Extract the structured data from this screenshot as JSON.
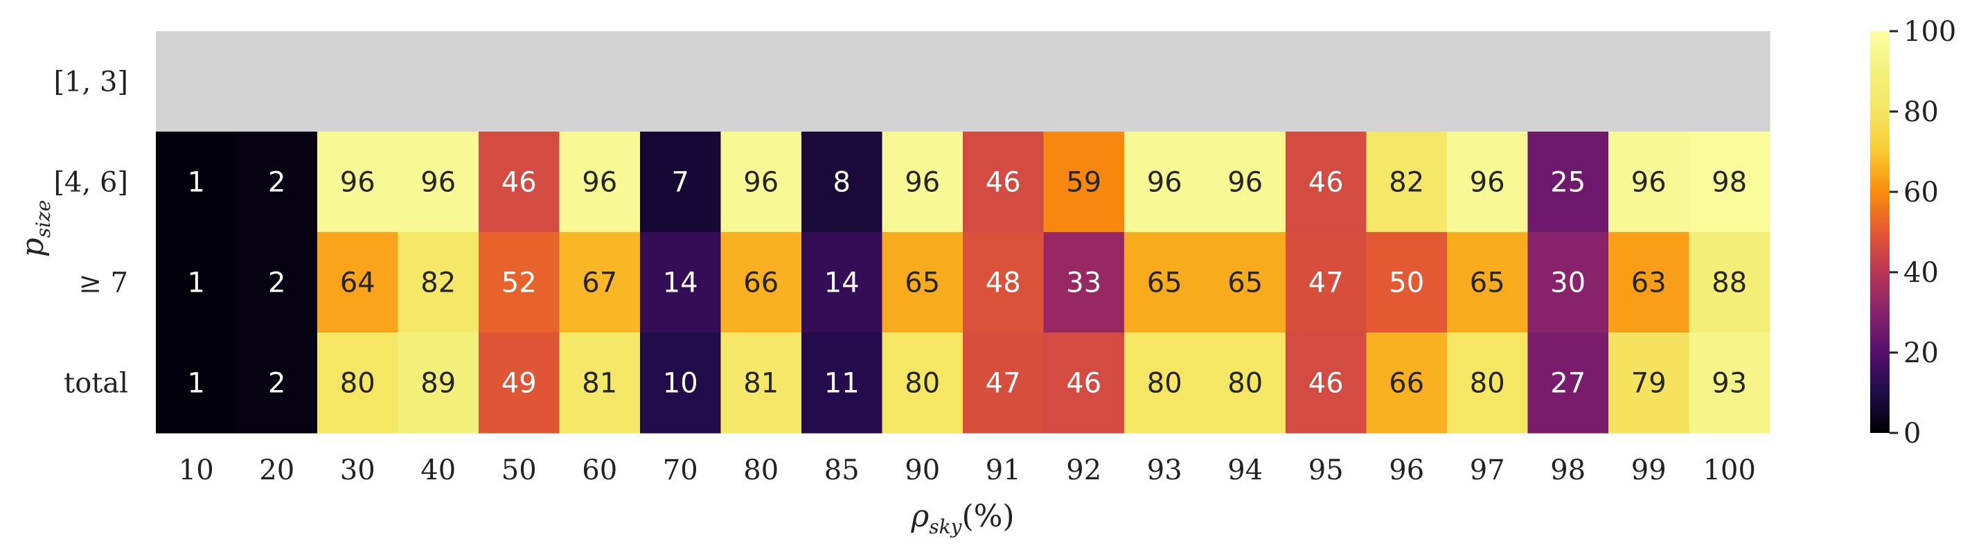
{
  "chart_data": {
    "type": "heatmap",
    "title": "",
    "xlabel": "ρ",
    "xlabel_sub": "sky",
    "xlabel_suffix": "(%)",
    "ylabel": "p",
    "ylabel_sub": "size",
    "x": [
      "10",
      "20",
      "30",
      "40",
      "50",
      "60",
      "70",
      "80",
      "85",
      "90",
      "91",
      "92",
      "93",
      "94",
      "95",
      "96",
      "97",
      "98",
      "99",
      "100"
    ],
    "y": [
      "[1, 3]",
      "[4, 6]",
      "≥ 7",
      "total"
    ],
    "values": [
      [
        null,
        null,
        null,
        null,
        null,
        null,
        null,
        null,
        null,
        null,
        null,
        null,
        null,
        null,
        null,
        null,
        null,
        null,
        null,
        null
      ],
      [
        1,
        2,
        96,
        96,
        46,
        96,
        7,
        96,
        8,
        96,
        46,
        59,
        96,
        96,
        46,
        82,
        96,
        25,
        96,
        98
      ],
      [
        1,
        2,
        64,
        82,
        52,
        67,
        14,
        66,
        14,
        65,
        48,
        33,
        65,
        65,
        47,
        50,
        65,
        30,
        63,
        88
      ],
      [
        1,
        2,
        80,
        89,
        49,
        81,
        10,
        81,
        11,
        80,
        47,
        46,
        80,
        80,
        46,
        66,
        80,
        27,
        79,
        93
      ]
    ],
    "colormap": "inferno",
    "missing_color": "#d3d3d3",
    "vmin": 0,
    "vmax": 100,
    "colorbar_ticks": [
      "0",
      "20",
      "40",
      "60",
      "80",
      "100"
    ],
    "grid": false,
    "legend": "colorbar-right"
  }
}
